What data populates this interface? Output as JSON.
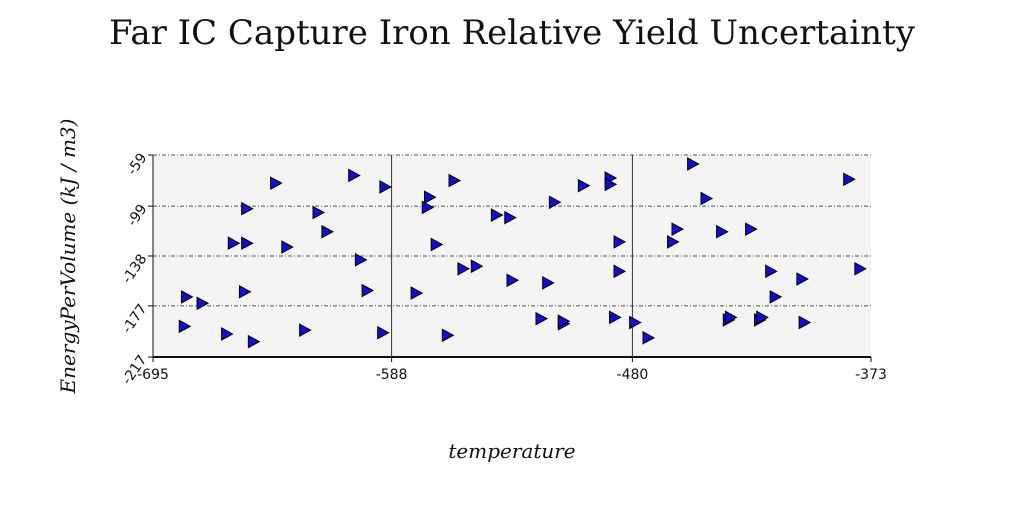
{
  "chart_data": {
    "type": "scatter",
    "title": "Far IC Capture Iron Relative Yield Uncertainty",
    "xlabel": "temperature",
    "ylabel": "EnergyPerVolume (kJ / m3)",
    "xlim": [
      -695,
      -373
    ],
    "ylim": [
      -217,
      -59
    ],
    "x_ticks": [
      "-695",
      "-588",
      "-480",
      "-373"
    ],
    "y_ticks": [
      "-217",
      "-177",
      "-138",
      "-99",
      "-59"
    ],
    "marker": "right-triangle",
    "colors": {
      "marker_fill": "#1010cc",
      "marker_stroke": "#000000",
      "plot_background": "#f4f4f4",
      "grid": "#555555"
    },
    "grid": true,
    "points": [
      {
        "x": -680,
        "y": -170
      },
      {
        "x": -681,
        "y": -193
      },
      {
        "x": -673,
        "y": -175
      },
      {
        "x": -662,
        "y": -199
      },
      {
        "x": -659,
        "y": -128
      },
      {
        "x": -654,
        "y": -166
      },
      {
        "x": -653,
        "y": -101
      },
      {
        "x": -653,
        "y": -128
      },
      {
        "x": -650,
        "y": -205
      },
      {
        "x": -635,
        "y": -131
      },
      {
        "x": -640,
        "y": -81
      },
      {
        "x": -627,
        "y": -196
      },
      {
        "x": -621,
        "y": -104
      },
      {
        "x": -617,
        "y": -119
      },
      {
        "x": -605,
        "y": -75
      },
      {
        "x": -602,
        "y": -141
      },
      {
        "x": -599,
        "y": -165
      },
      {
        "x": -592,
        "y": -198
      },
      {
        "x": -591,
        "y": -84
      },
      {
        "x": -577,
        "y": -167
      },
      {
        "x": -572,
        "y": -100
      },
      {
        "x": -571,
        "y": -92
      },
      {
        "x": -568,
        "y": -129
      },
      {
        "x": -563,
        "y": -200
      },
      {
        "x": -560,
        "y": -79
      },
      {
        "x": -556,
        "y": -148
      },
      {
        "x": -550,
        "y": -146
      },
      {
        "x": -541,
        "y": -106
      },
      {
        "x": -535,
        "y": -108
      },
      {
        "x": -534,
        "y": -157
      },
      {
        "x": -521,
        "y": -187
      },
      {
        "x": -518,
        "y": -159
      },
      {
        "x": -515,
        "y": -96
      },
      {
        "x": -511,
        "y": -191
      },
      {
        "x": -511,
        "y": -189
      },
      {
        "x": -502,
        "y": -83
      },
      {
        "x": -490,
        "y": -77
      },
      {
        "x": -490,
        "y": -82
      },
      {
        "x": -488,
        "y": -186
      },
      {
        "x": -486,
        "y": -150
      },
      {
        "x": -486,
        "y": -127
      },
      {
        "x": -479,
        "y": -190
      },
      {
        "x": -473,
        "y": -202
      },
      {
        "x": -462,
        "y": -127
      },
      {
        "x": -460,
        "y": -117
      },
      {
        "x": -453,
        "y": -66
      },
      {
        "x": -447,
        "y": -93
      },
      {
        "x": -440,
        "y": -119
      },
      {
        "x": -437,
        "y": -188
      },
      {
        "x": -436,
        "y": -186
      },
      {
        "x": -427,
        "y": -117
      },
      {
        "x": -423,
        "y": -188
      },
      {
        "x": -422,
        "y": -186
      },
      {
        "x": -418,
        "y": -150
      },
      {
        "x": -416,
        "y": -170
      },
      {
        "x": -404,
        "y": -156
      },
      {
        "x": -403,
        "y": -190
      },
      {
        "x": -383,
        "y": -78
      },
      {
        "x": -378,
        "y": -148
      }
    ]
  }
}
